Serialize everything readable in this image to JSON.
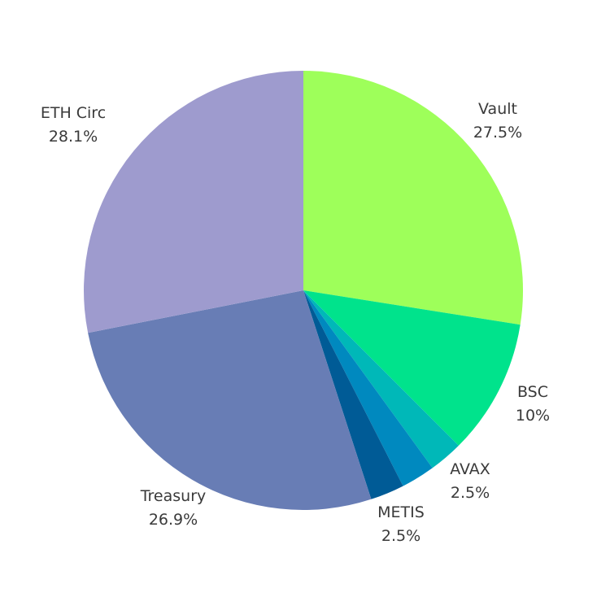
{
  "chart_data": {
    "type": "pie",
    "title": "",
    "start_angle_deg": 0,
    "direction": "clockwise",
    "slices": [
      {
        "name": "Vault",
        "value": 27.5,
        "label": "27.5%",
        "color": "#9eff5a"
      },
      {
        "name": "BSC",
        "value": 10.0,
        "label": "10%",
        "color": "#00e38c"
      },
      {
        "name": "",
        "value": 2.5,
        "label": "",
        "color": "#00b8b8"
      },
      {
        "name": "AVAX",
        "value": 2.5,
        "label": "2.5%",
        "color": "#0089bf"
      },
      {
        "name": "METIS",
        "value": 2.5,
        "label": "2.5%",
        "color": "#005b96"
      },
      {
        "name": "Treasury",
        "value": 26.9,
        "label": "26.9%",
        "color": "#687db5"
      },
      {
        "name": "ETH Circ",
        "value": 28.1,
        "label": "28.1%",
        "color": "#9e9bce"
      }
    ],
    "legend": "none",
    "label_color": "#3a3a3a"
  }
}
